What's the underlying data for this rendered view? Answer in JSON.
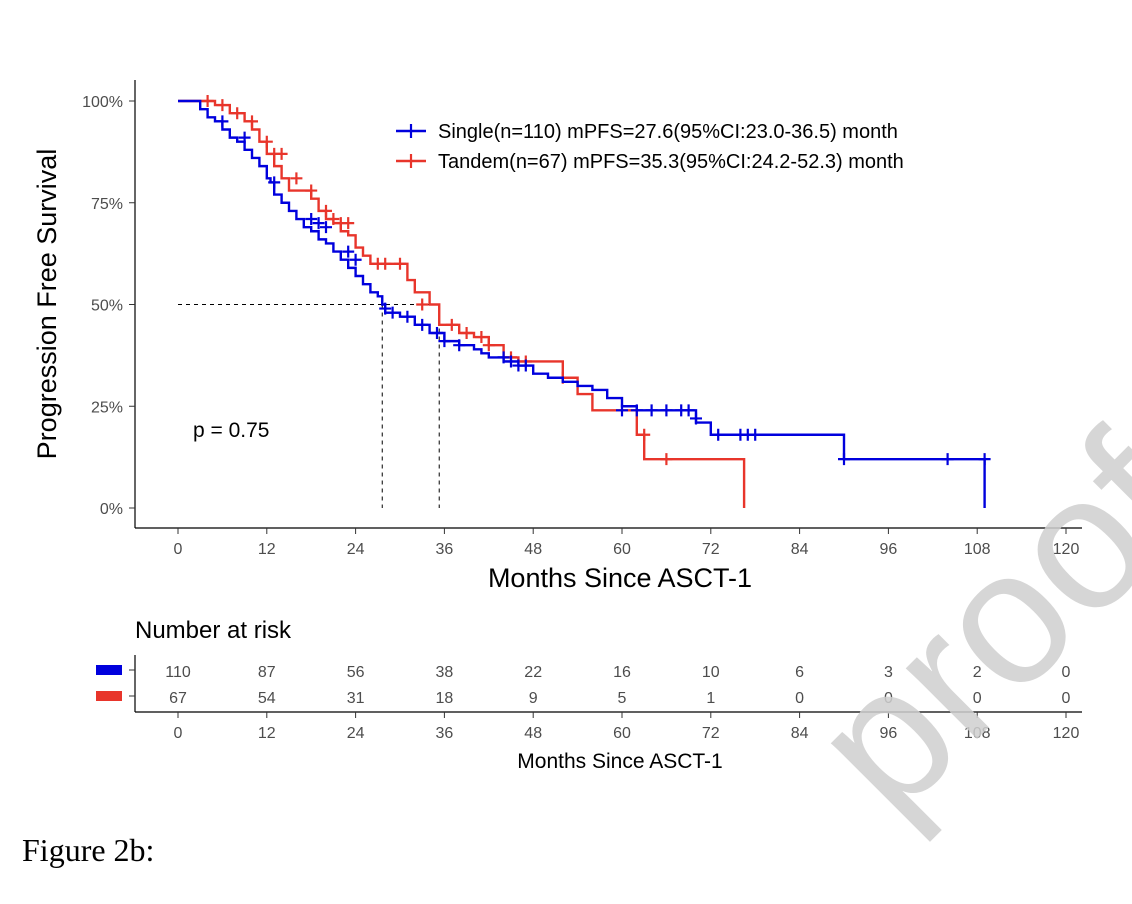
{
  "chart_data": {
    "type": "line",
    "subtype": "kaplan-meier",
    "title": "",
    "xlabel": "Months Since ASCT-1",
    "ylabel": "Progression Free Survival",
    "xlim": [
      0,
      120
    ],
    "ylim": [
      0,
      1
    ],
    "xticks": [
      "0",
      "12",
      "24",
      "36",
      "48",
      "60",
      "72",
      "84",
      "96",
      "108",
      "120"
    ],
    "yticks": [
      "0%",
      "25%",
      "50%",
      "75%",
      "100%"
    ],
    "grid": false,
    "legend_position": "top-right",
    "annotation": "p = 0.75",
    "median_line": 0.5,
    "series": [
      {
        "name": "Single(n=110) mPFS=27.6(95%CI:23.0-36.5) month",
        "color": "#0000dd",
        "median": 27.6,
        "x": [
          0,
          3,
          4,
          5,
          6,
          7,
          8,
          9,
          10,
          11,
          12,
          12.5,
          13,
          14,
          15,
          16,
          17,
          18,
          19,
          20,
          21,
          22,
          23,
          24,
          25,
          26,
          27,
          27.6,
          28,
          30,
          32,
          34,
          36,
          38,
          40,
          41,
          42,
          44,
          46,
          48,
          50,
          52,
          54,
          56,
          58,
          60,
          62,
          64,
          66,
          68,
          70,
          72,
          74,
          76,
          78,
          80,
          82,
          84,
          86,
          88,
          90,
          92,
          94,
          96,
          98,
          100,
          102,
          104,
          106,
          108,
          109
        ],
        "y": [
          1.0,
          0.98,
          0.96,
          0.95,
          0.93,
          0.91,
          0.9,
          0.88,
          0.86,
          0.84,
          0.81,
          0.8,
          0.77,
          0.75,
          0.73,
          0.71,
          0.69,
          0.68,
          0.66,
          0.65,
          0.63,
          0.61,
          0.59,
          0.57,
          0.55,
          0.53,
          0.52,
          0.5,
          0.48,
          0.47,
          0.45,
          0.43,
          0.41,
          0.4,
          0.39,
          0.38,
          0.37,
          0.36,
          0.35,
          0.33,
          0.32,
          0.31,
          0.3,
          0.29,
          0.27,
          0.25,
          0.24,
          0.24,
          0.24,
          0.24,
          0.21,
          0.18,
          0.18,
          0.18,
          0.18,
          0.18,
          0.18,
          0.18,
          0.18,
          0.18,
          0.12,
          0.12,
          0.12,
          0.12,
          0.12,
          0.12,
          0.12,
          0.12,
          0.12,
          0.12,
          0.0
        ],
        "censor_x": [
          6,
          9,
          13,
          18,
          19,
          20,
          23,
          24,
          28,
          29,
          31,
          33,
          35,
          36,
          38,
          44,
          45,
          46,
          47,
          60,
          62,
          64,
          66,
          68,
          69,
          70,
          73,
          76,
          77,
          78,
          90,
          104,
          109
        ],
        "censor_y": [
          0.95,
          0.91,
          0.8,
          0.71,
          0.7,
          0.69,
          0.63,
          0.61,
          0.49,
          0.48,
          0.47,
          0.45,
          0.43,
          0.41,
          0.4,
          0.37,
          0.36,
          0.35,
          0.35,
          0.24,
          0.24,
          0.24,
          0.24,
          0.24,
          0.24,
          0.22,
          0.18,
          0.18,
          0.18,
          0.18,
          0.12,
          0.12,
          0.12
        ]
      },
      {
        "name": "Tandem(n=67) mPFS=35.3(95%CI:24.2-52.3) month",
        "color": "#e8352b",
        "median": 35.3,
        "x": [
          0,
          5,
          7,
          9,
          10,
          11,
          12,
          13,
          14,
          15,
          16,
          18,
          19,
          20,
          21,
          22,
          23,
          24,
          25,
          26,
          27,
          29,
          31,
          32,
          34,
          35.3,
          36,
          38,
          40,
          42,
          44,
          46,
          48,
          50,
          52,
          53,
          54,
          56,
          58,
          60,
          62,
          63,
          65,
          67,
          70,
          72,
          76,
          76.5
        ],
        "y": [
          1.0,
          0.99,
          0.97,
          0.95,
          0.93,
          0.9,
          0.87,
          0.84,
          0.81,
          0.78,
          0.78,
          0.76,
          0.73,
          0.71,
          0.7,
          0.68,
          0.67,
          0.64,
          0.62,
          0.6,
          0.6,
          0.6,
          0.56,
          0.53,
          0.5,
          0.45,
          0.45,
          0.43,
          0.42,
          0.4,
          0.37,
          0.36,
          0.36,
          0.36,
          0.32,
          0.32,
          0.28,
          0.24,
          0.24,
          0.24,
          0.18,
          0.12,
          0.12,
          0.12,
          0.12,
          0.12,
          0.12,
          0.0
        ],
        "censor_x": [
          4,
          6,
          8,
          10,
          12,
          13,
          14,
          16,
          18,
          20,
          21,
          22,
          23,
          27,
          28,
          30,
          33,
          37,
          39,
          41,
          42,
          45,
          47,
          52,
          63,
          66
        ],
        "censor_y": [
          1.0,
          0.99,
          0.97,
          0.95,
          0.9,
          0.87,
          0.87,
          0.81,
          0.78,
          0.73,
          0.71,
          0.7,
          0.7,
          0.6,
          0.6,
          0.6,
          0.5,
          0.45,
          0.43,
          0.42,
          0.4,
          0.37,
          0.36,
          0.32,
          0.18,
          0.12
        ]
      }
    ],
    "risk_table": {
      "title": "Number at risk",
      "xlabel": "Months Since ASCT-1",
      "time_points": [
        "0",
        "12",
        "24",
        "36",
        "48",
        "60",
        "72",
        "84",
        "96",
        "108",
        "120"
      ],
      "rows": [
        {
          "color": "#0000dd",
          "values": [
            "110",
            "87",
            "56",
            "38",
            "22",
            "16",
            "10",
            "6",
            "3",
            "2",
            "0"
          ]
        },
        {
          "color": "#e8352b",
          "values": [
            "67",
            "54",
            "31",
            "18",
            "9",
            "5",
            "1",
            "0",
            "0",
            "0",
            "0"
          ]
        }
      ]
    }
  },
  "caption": "Figure 2b:",
  "watermark": "proof"
}
